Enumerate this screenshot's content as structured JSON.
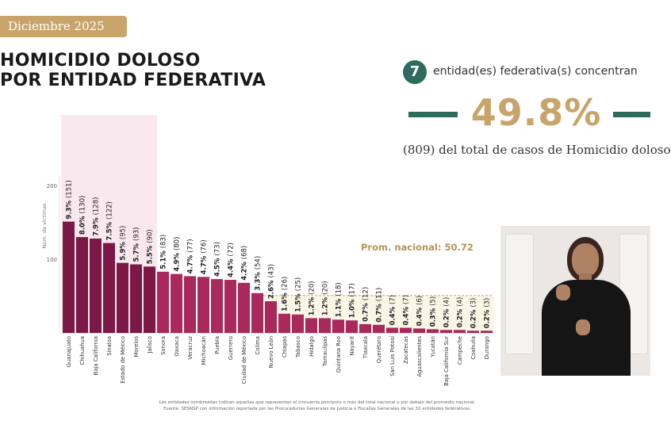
{
  "header": {
    "date_label": "Diciembre 2025",
    "title_line1": "HOMICIDIO DOLOSO",
    "title_line2": "POR ENTIDAD FEDERATIVA"
  },
  "summary": {
    "count": "7",
    "count_text": "entidad(es) federativa(s) concentran",
    "percentage": "49.8%",
    "total_text": "(809) del total de casos de Homicidio doloso"
  },
  "colors": {
    "bar_dark": "#7b1845",
    "bar_light": "#a9295d",
    "highlight_bg": "#f9e9ef",
    "gold": "#c8a46a",
    "green": "#2e6b5c"
  },
  "chart_data": {
    "type": "bar",
    "ylabel": "Núm. de víctimas",
    "yticks": [
      100,
      200
    ],
    "ylim": [
      0,
      230
    ],
    "categories": [
      "Guanajuato",
      "Chihuahua",
      "Baja California",
      "Sinaloa",
      "Estado de México",
      "Morelos",
      "Jalisco",
      "Sonora",
      "Oaxaca",
      "Veracruz",
      "Michoacán",
      "Puebla",
      "Guerrero",
      "Ciudad de México",
      "Colima",
      "Nuevo León",
      "Chiapas",
      "Tabasco",
      "Hidalgo",
      "Tamaulipas",
      "Quintana Roo",
      "Nayarit",
      "Tlaxcala",
      "Querétaro",
      "San Luis Potosí",
      "Zacatecas",
      "Aguascalientes",
      "Yucatán",
      "Baja California Sur",
      "Campeche",
      "Coahuila",
      "Durango"
    ],
    "values": [
      151,
      130,
      128,
      122,
      95,
      93,
      90,
      83,
      80,
      77,
      76,
      73,
      72,
      68,
      54,
      43,
      26,
      25,
      20,
      20,
      18,
      17,
      12,
      11,
      7,
      7,
      6,
      5,
      4,
      4,
      3,
      3
    ],
    "labels": [
      "9.3% (151)",
      "8.0% (130)",
      "7.9% (128)",
      "7.5% (122)",
      "5.9% (95)",
      "5.7% (93)",
      "5.5% (90)",
      "5.1% (83)",
      "4.9% (80)",
      "4.7% (77)",
      "4.7% (76)",
      "4.5% (73)",
      "4.4% (72)",
      "4.2% (68)",
      "3.3% (54)",
      "2.6% (43)",
      "1.6% (26)",
      "1.5% (25)",
      "1.2% (20)",
      "1.2% (20)",
      "1.1% (18)",
      "1.0% (17)",
      "0.7% (12)",
      "0.7% (11)",
      "0.4% (7)",
      "0.4% (7)",
      "0.4% (6)",
      "0.3% (5)",
      "0.2% (4)",
      "0.2% (4)",
      "0.2% (3)",
      "0.2% (3)"
    ],
    "highlighted_count": 7,
    "average_label": "Prom. nacional: 50.72",
    "average_value": 50.72
  },
  "footnote": {
    "line1": "Las entidades sombreadas indican aquellas que representan el cincuenta porciento o más del total nacional o por debajo del promedio nacional.",
    "line2": "Fuente: SESNSP con información reportada por las Procuradurías Generales de Justicia o Fiscalías Generales de las 32 entidades federativas."
  }
}
